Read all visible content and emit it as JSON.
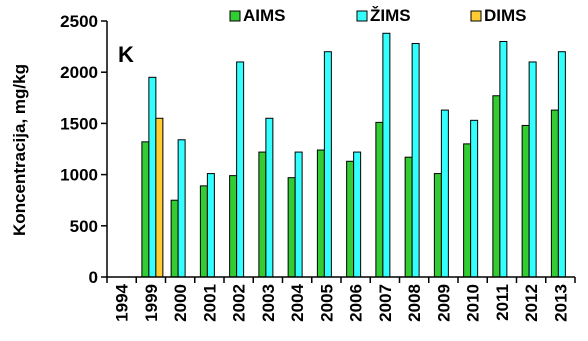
{
  "chart_data": {
    "type": "bar",
    "title": "",
    "panel_label": "K",
    "ylabel": "Koncentracija, mg/kg",
    "xlabel": "",
    "ylim": [
      0,
      2500
    ],
    "yticks": [
      0,
      500,
      1000,
      1500,
      2000,
      2500
    ],
    "grid": false,
    "legend_position": "top",
    "categories": [
      "1994",
      "1999",
      "2000",
      "2001",
      "2002",
      "2003",
      "2004",
      "2005",
      "2006",
      "2007",
      "2008",
      "2009",
      "2010",
      "2011",
      "2012",
      "2013"
    ],
    "series": [
      {
        "name": "AIMS",
        "color": "#33cc33",
        "values": [
          null,
          1320,
          750,
          890,
          990,
          1220,
          970,
          1240,
          1130,
          1510,
          1170,
          1010,
          1300,
          1770,
          1480,
          1630
        ]
      },
      {
        "name": "ŽIMS",
        "color": "#33ffff",
        "values": [
          null,
          1950,
          1340,
          1010,
          2100,
          1550,
          1220,
          2200,
          1220,
          2380,
          2280,
          1630,
          1530,
          2300,
          2100,
          2200
        ]
      },
      {
        "name": "DIMS",
        "color": "#ffcc33",
        "values": [
          null,
          1550,
          null,
          null,
          null,
          null,
          null,
          null,
          null,
          null,
          null,
          null,
          null,
          null,
          null,
          null
        ]
      }
    ]
  }
}
